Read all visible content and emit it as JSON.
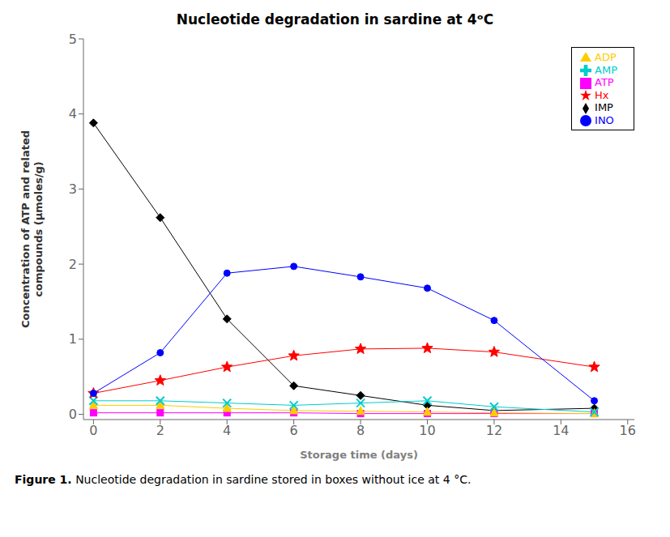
{
  "chart_data": {
    "type": "line",
    "title": "Nucleotide degradation in sardine at 4ᵒC",
    "x_label": "Storage time (days)",
    "y_label": "Concentration of ATP and related\ncompounds (μmoles/g)",
    "caption": {
      "label": "Figure 1.",
      "text": "Nucleotide degradation in sardine stored in boxes without ice at 4 °C."
    },
    "xlim": [
      -0.3,
      16.2
    ],
    "ylim": [
      -0.07,
      5
    ],
    "xticks": [
      0,
      2,
      4,
      6,
      8,
      10,
      12,
      14,
      16
    ],
    "yticks": [
      0,
      1,
      2,
      3,
      4,
      5
    ],
    "grid": false,
    "legend": "upper right",
    "series": [
      {
        "name": "IMP",
        "color": "#000000",
        "marker": "diamond",
        "x": [
          0,
          2,
          4,
          6,
          8,
          10,
          12,
          15
        ],
        "values": [
          3.88,
          2.62,
          1.27,
          0.38,
          0.25,
          0.12,
          0.05,
          0.08
        ]
      },
      {
        "name": "ATP",
        "color": "#ff00ff",
        "marker": "square",
        "x": [
          0,
          2,
          4,
          6,
          8,
          10,
          12,
          15
        ],
        "values": [
          0.02,
          0.02,
          0.02,
          0.02,
          0.01,
          0.01,
          0.01,
          0.01
        ]
      },
      {
        "name": "ADP",
        "color": "#ffcc00",
        "marker": "triangle",
        "x": [
          0,
          2,
          4,
          6,
          8,
          10,
          12,
          15
        ],
        "values": [
          0.12,
          0.12,
          0.08,
          0.05,
          0.04,
          0.03,
          0.02,
          0.01
        ]
      },
      {
        "name": "AMP",
        "color": "#00cccc",
        "marker": "x",
        "x": [
          0,
          2,
          4,
          6,
          8,
          10,
          12,
          15
        ],
        "values": [
          0.18,
          0.18,
          0.15,
          0.12,
          0.15,
          0.18,
          0.1,
          0.03
        ]
      },
      {
        "name": "Hx",
        "color": "#ff0000",
        "marker": "star",
        "x": [
          0,
          2,
          4,
          6,
          8,
          10,
          12,
          15
        ],
        "values": [
          0.28,
          0.45,
          0.63,
          0.78,
          0.87,
          0.88,
          0.83,
          0.63
        ]
      },
      {
        "name": "INO",
        "color": "#0000ff",
        "marker": "circle",
        "x": [
          0,
          2,
          4,
          6,
          8,
          10,
          12,
          15
        ],
        "values": [
          0.28,
          0.82,
          1.88,
          1.97,
          1.83,
          1.68,
          1.25,
          0.18
        ]
      }
    ]
  }
}
